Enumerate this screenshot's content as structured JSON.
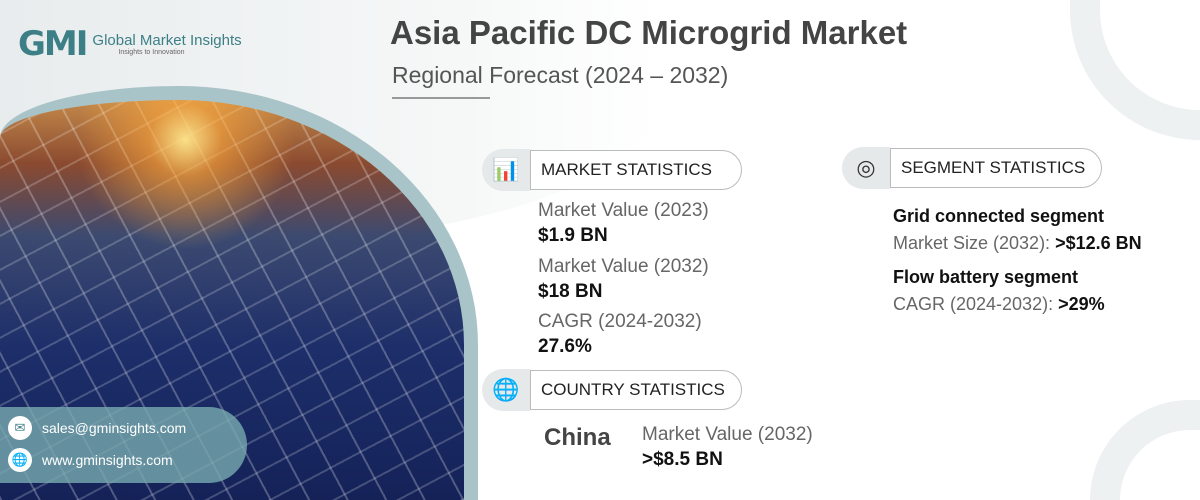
{
  "brand": {
    "logo_mark": "GMI",
    "name": "Global Market Insights",
    "tagline": "Insights to Innovation"
  },
  "header": {
    "title": "Asia Pacific DC Microgrid Market",
    "subtitle": "Regional Forecast (2024 – 2032)"
  },
  "market_statistics": {
    "heading": "MARKET STATISTICS",
    "items": [
      {
        "label": "Market Value (2023)",
        "value": "$1.9 BN"
      },
      {
        "label": "Market Value (2032)",
        "value": "$18 BN"
      },
      {
        "label": "CAGR (2024-2032)",
        "value": "27.6%"
      }
    ]
  },
  "country_statistics": {
    "heading": "COUNTRY STATISTICS",
    "country": "China",
    "label": "Market Value (2032)",
    "value": ">$8.5 BN"
  },
  "segment_statistics": {
    "heading": "SEGMENT STATISTICS",
    "items": [
      {
        "name": "Grid connected segment",
        "label": "Market Size (2032): ",
        "value": ">$12.6 BN"
      },
      {
        "name": "Flow battery segment",
        "label": "CAGR (2024-2032): ",
        "value": ">29%"
      }
    ]
  },
  "contact": {
    "email": "sales@gminsights.com",
    "website": "www.gminsights.com"
  }
}
